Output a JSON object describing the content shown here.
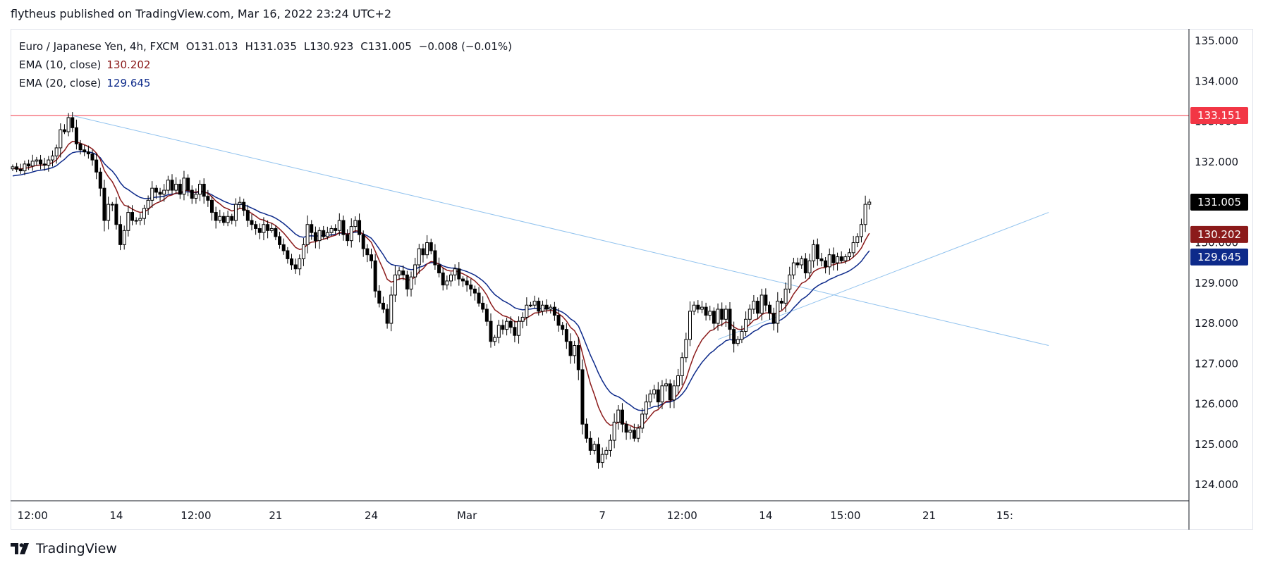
{
  "header": {
    "publish_text": "flytheus published on TradingView.com, Mar 16, 2022 23:24 UTC+2"
  },
  "legend": {
    "symbol": "Euro / Japanese Yen, 4h, FXCM",
    "open": "O131.013",
    "high": "H131.035",
    "low": "L130.923",
    "close": "C131.005",
    "change": "−0.008 (−0.01%)",
    "ema10_label": "EMA (10, close)",
    "ema10_value": "130.202",
    "ema20_label": "EMA (20, close)",
    "ema20_value": "129.645"
  },
  "brand": {
    "name": "TradingView"
  },
  "colors": {
    "up_body": "#ffffff",
    "down_body": "#000000",
    "wick": "#000000",
    "ema10": "#8b1a1a",
    "ema20": "#0d2a8a",
    "resistance": "#f23645",
    "trendline": "#90c2ee",
    "axis_text": "#131722",
    "last_price_bg": "#000000"
  },
  "chart_data": {
    "type": "candlestick",
    "title": "Euro / Japanese Yen, 4h, FXCM",
    "ylim": [
      123.6,
      135.3
    ],
    "xlim": [
      0,
      248
    ],
    "y_ticks": [
      "124.000",
      "125.000",
      "126.000",
      "127.000",
      "128.000",
      "129.000",
      "130.000",
      "131.000",
      "132.000",
      "133.000",
      "134.000",
      "135.000"
    ],
    "x_ticks": [
      {
        "label": "12:00",
        "i": 5
      },
      {
        "label": "14",
        "i": 26
      },
      {
        "label": "12:00",
        "i": 46
      },
      {
        "label": "21",
        "i": 66
      },
      {
        "label": "24",
        "i": 90
      },
      {
        "label": "Mar",
        "i": 114
      },
      {
        "label": "7",
        "i": 148
      },
      {
        "label": "12:00",
        "i": 168
      },
      {
        "label": "14",
        "i": 189
      },
      {
        "label": "15:00",
        "i": 209
      },
      {
        "label": "21",
        "i": 230
      },
      {
        "label": "15:",
        "i": 249
      }
    ],
    "price_labels": [
      {
        "value": 133.151,
        "text": "133.151",
        "bg": "#f23645"
      },
      {
        "value": 131.005,
        "text": "131.005",
        "bg": "#000000"
      },
      {
        "value": 130.202,
        "text": "130.202",
        "bg": "#8b1a1a"
      },
      {
        "value": 129.645,
        "text": "129.645",
        "bg": "#0d2a8a"
      }
    ],
    "resistance_level": 133.151,
    "trendlines": [
      {
        "name": "descending",
        "points": [
          [
            15,
            133.15
          ],
          [
            260,
            127.45
          ]
        ]
      },
      {
        "name": "ascending",
        "points": [
          [
            177,
            127.6
          ],
          [
            260,
            130.75
          ]
        ]
      }
    ],
    "closes": [
      131.88,
      131.82,
      131.78,
      131.95,
      131.9,
      132.02,
      132.05,
      131.95,
      131.92,
      132.05,
      132.15,
      132.35,
      132.8,
      132.75,
      133.1,
      132.85,
      132.45,
      132.3,
      132.25,
      132.2,
      132.05,
      131.75,
      131.35,
      130.55,
      130.95,
      130.95,
      130.45,
      129.95,
      130.3,
      130.75,
      130.55,
      130.55,
      130.6,
      130.85,
      131.05,
      131.35,
      131.25,
      131.2,
      131.3,
      131.55,
      131.3,
      131.45,
      131.2,
      131.6,
      131.3,
      131.1,
      131.2,
      131.45,
      131.15,
      131.05,
      130.75,
      130.55,
      130.65,
      130.5,
      130.65,
      130.55,
      130.95,
      131.0,
      130.8,
      130.55,
      130.45,
      130.35,
      130.25,
      130.45,
      130.3,
      130.35,
      130.15,
      129.95,
      129.8,
      129.6,
      129.45,
      129.35,
      129.6,
      129.95,
      130.45,
      130.25,
      130.05,
      130.3,
      130.15,
      130.25,
      130.35,
      130.3,
      130.55,
      130.2,
      130.05,
      130.4,
      130.55,
      130.2,
      129.85,
      129.7,
      129.55,
      128.8,
      128.5,
      128.35,
      128.0,
      128.7,
      129.2,
      129.3,
      129.2,
      128.85,
      129.15,
      129.45,
      129.85,
      129.7,
      130.0,
      129.8,
      129.45,
      129.25,
      128.95,
      129.05,
      129.2,
      129.35,
      129.1,
      129.05,
      128.95,
      128.85,
      128.75,
      128.5,
      128.35,
      128.05,
      127.55,
      127.65,
      127.95,
      127.85,
      128.05,
      127.9,
      127.7,
      128.05,
      128.15,
      128.45,
      128.45,
      128.55,
      128.3,
      128.45,
      128.35,
      128.4,
      128.2,
      127.95,
      127.85,
      127.55,
      127.2,
      127.45,
      126.85,
      125.5,
      125.15,
      124.85,
      125.0,
      124.55,
      124.75,
      124.85,
      125.1,
      125.55,
      125.85,
      125.5,
      125.3,
      125.35,
      125.15,
      125.4,
      125.75,
      126.05,
      126.25,
      126.35,
      126.05,
      126.45,
      126.5,
      126.1,
      126.45,
      126.7,
      127.15,
      127.6,
      128.3,
      128.45,
      128.35,
      128.4,
      128.2,
      128.3,
      128.0,
      128.35,
      128.1,
      128.35,
      127.85,
      127.5,
      127.6,
      127.8,
      128.1,
      128.35,
      128.55,
      128.25,
      128.7,
      128.45,
      128.25,
      128.0,
      128.55,
      128.5,
      128.85,
      129.2,
      129.5,
      129.45,
      129.6,
      129.25,
      129.55,
      129.95,
      129.6,
      129.55,
      129.4,
      129.7,
      129.5,
      129.65,
      129.55,
      129.65,
      129.75,
      130.0,
      130.15,
      130.45,
      130.95,
      131.005
    ]
  }
}
